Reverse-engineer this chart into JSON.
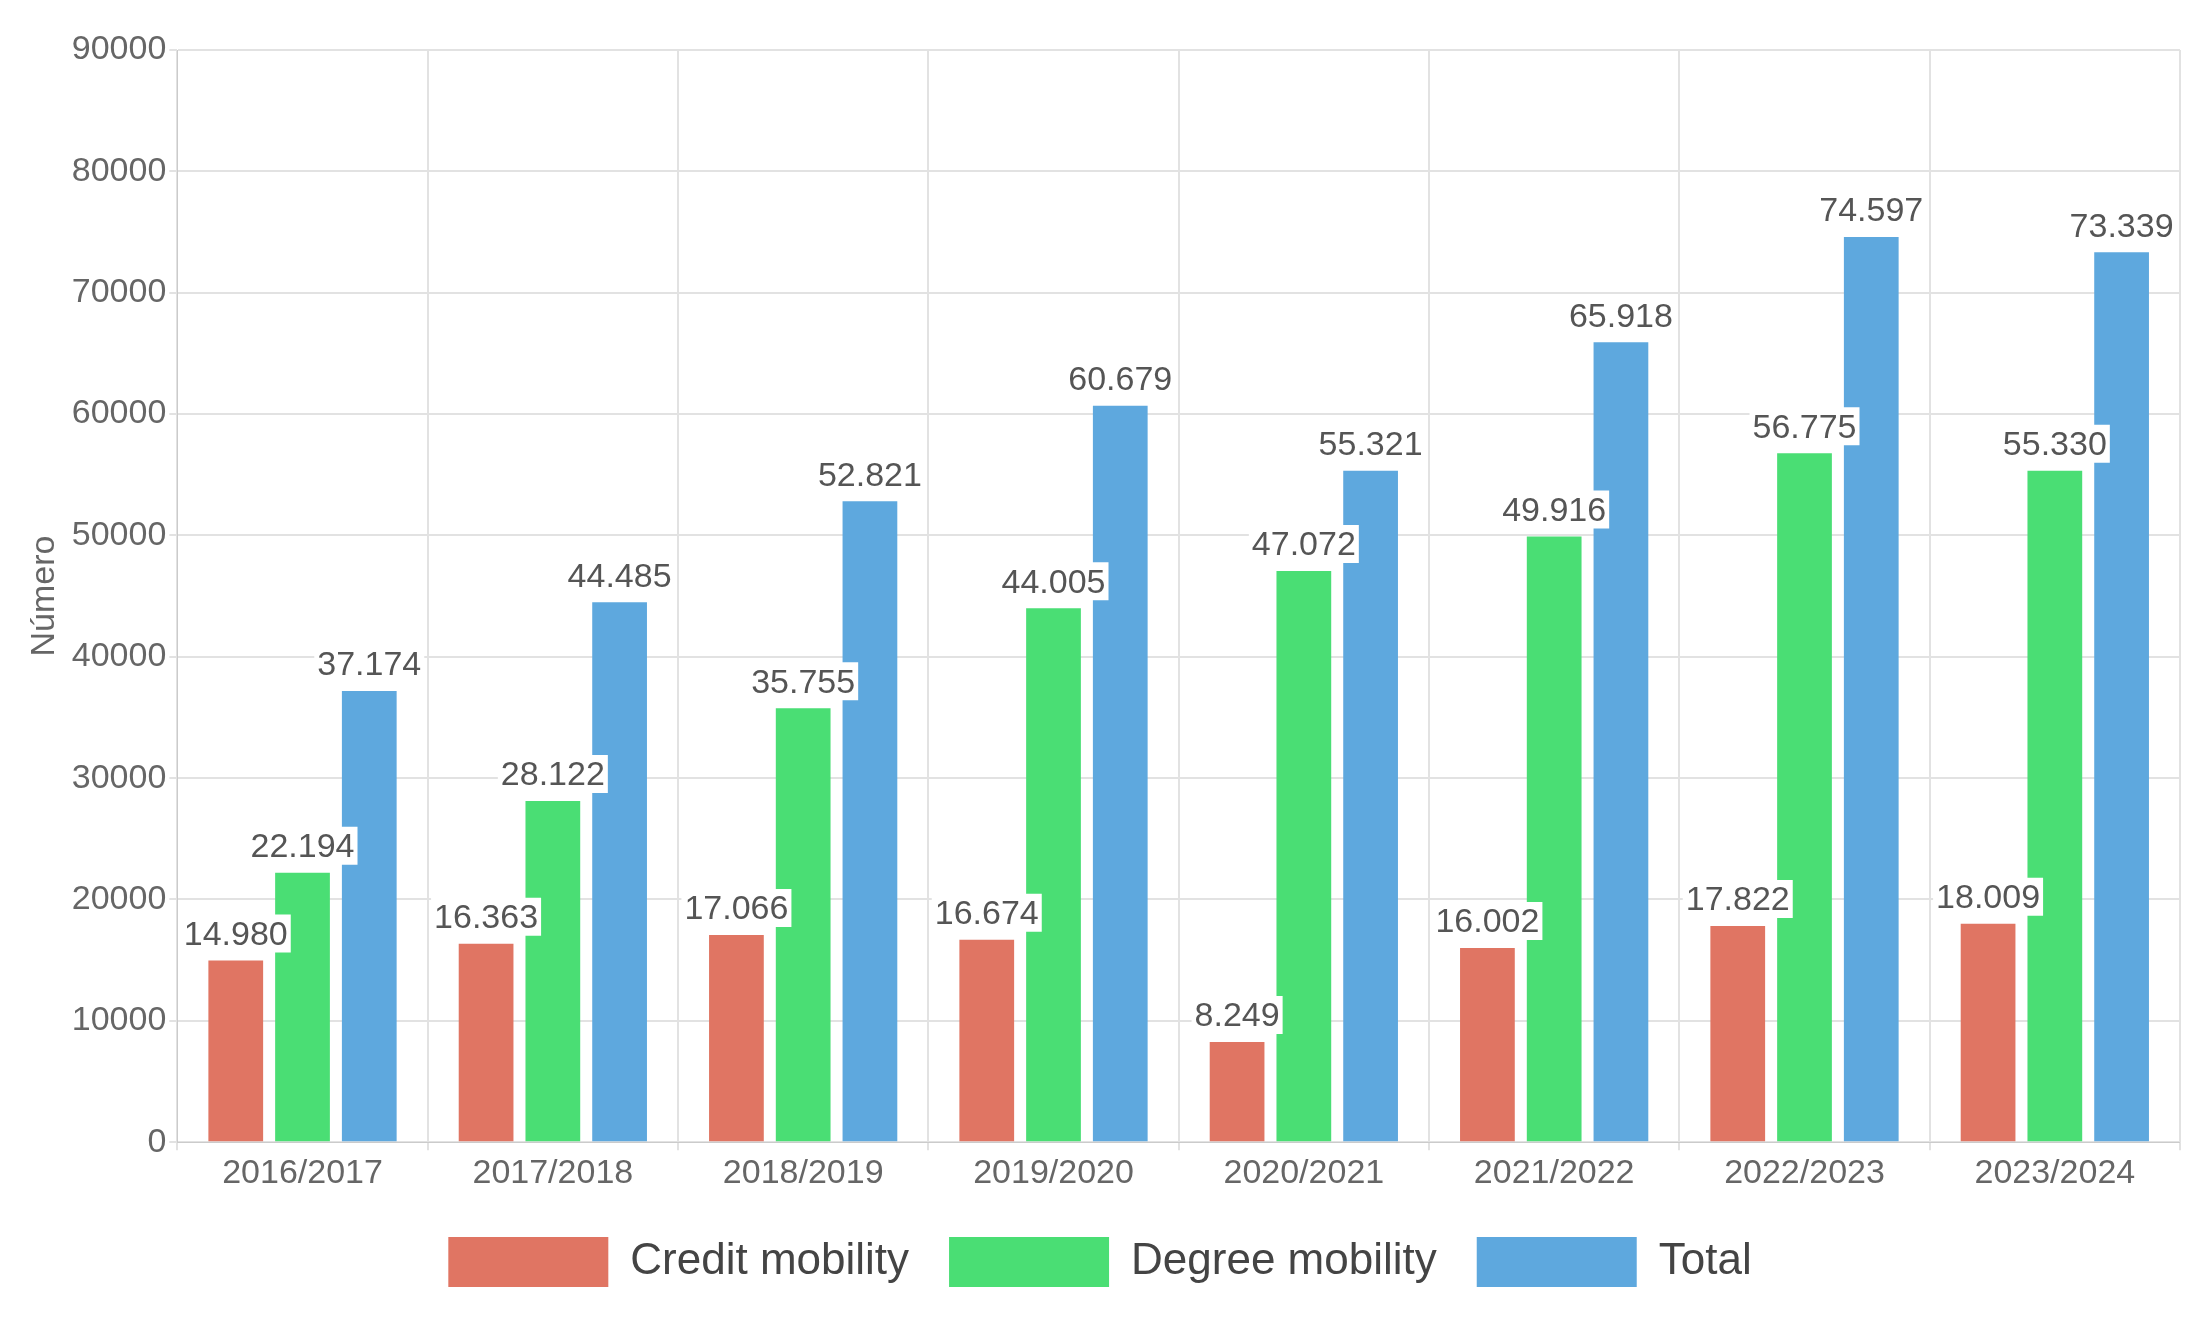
{
  "chart_data": {
    "type": "bar",
    "ylabel": "Número",
    "categories": [
      "2016/2017",
      "2017/2018",
      "2018/2019",
      "2019/2020",
      "2020/2021",
      "2021/2022",
      "2022/2023",
      "2023/2024"
    ],
    "series": [
      {
        "name": "Credit mobility",
        "color": "#e07563",
        "values": [
          14980,
          16363,
          17066,
          16674,
          8249,
          16002,
          17822,
          18009
        ],
        "value_labels": [
          "14.980",
          "16.363",
          "17.066",
          "16.674",
          "8.249",
          "16.002",
          "17.822",
          "18.009"
        ]
      },
      {
        "name": "Degree mobility",
        "color": "#4ade74",
        "values": [
          22194,
          28122,
          35755,
          44005,
          47072,
          49916,
          56775,
          55330
        ],
        "value_labels": [
          "22.194",
          "28.122",
          "35.755",
          "44.005",
          "47.072",
          "49.916",
          "56.775",
          "55.330"
        ]
      },
      {
        "name": "Total",
        "color": "#5ea8de",
        "values": [
          37174,
          44485,
          52821,
          60679,
          55321,
          65918,
          74597,
          73339
        ],
        "value_labels": [
          "37.174",
          "44.485",
          "52.821",
          "60.679",
          "55.321",
          "65.918",
          "74.597",
          "73.339"
        ]
      }
    ],
    "ylim": [
      0,
      90000
    ],
    "yticks": [
      0,
      10000,
      20000,
      30000,
      40000,
      50000,
      60000,
      70000,
      80000,
      90000
    ],
    "grid": true,
    "legend": "bottom"
  }
}
